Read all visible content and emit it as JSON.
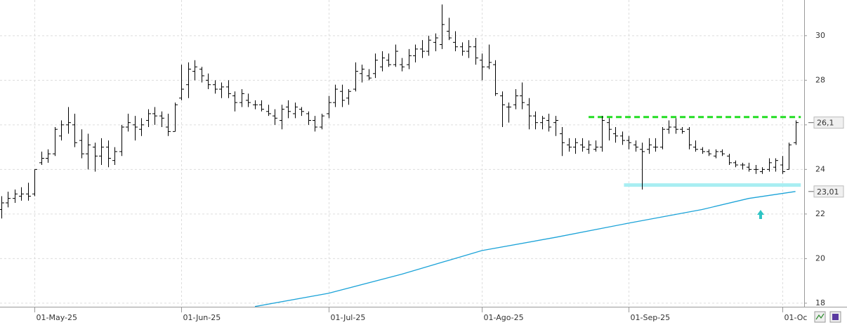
{
  "chart_data": {
    "type": "ohlc",
    "xlim": [
      -0.2,
      120.3
    ],
    "ylim": [
      17.84,
      31.6
    ],
    "yticks": [
      18,
      20,
      22,
      24,
      26,
      28,
      30
    ],
    "xticks": [
      {
        "value": 5,
        "label": "01-May-25"
      },
      {
        "value": 27,
        "label": "01-Jun-25"
      },
      {
        "value": 49,
        "label": "01-Jul-25"
      },
      {
        "value": 72,
        "label": "01-Ago-25"
      },
      {
        "value": 94,
        "label": "01-Sep-25"
      },
      {
        "value": 117,
        "label": "01-Oc"
      }
    ],
    "grid": true,
    "color": "#000000",
    "bars": [
      [
        22.2,
        22.8,
        21.8,
        22.5
      ],
      [
        22.5,
        23.0,
        22.3,
        22.7
      ],
      [
        22.7,
        23.1,
        22.5,
        22.9
      ],
      [
        22.8,
        23.2,
        22.6,
        22.9
      ],
      [
        22.9,
        23.4,
        22.6,
        22.8
      ],
      [
        22.9,
        24.0,
        22.8,
        24.0
      ],
      [
        24.3,
        24.8,
        24.2,
        24.5
      ],
      [
        24.5,
        24.9,
        24.3,
        24.7
      ],
      [
        24.7,
        25.9,
        24.6,
        25.8
      ],
      [
        25.5,
        26.2,
        25.3,
        26.0
      ],
      [
        26.0,
        26.8,
        25.6,
        26.1
      ],
      [
        26.0,
        26.5,
        25.0,
        25.2
      ],
      [
        25.3,
        25.8,
        24.5,
        24.7
      ],
      [
        24.7,
        25.6,
        24.0,
        25.1
      ],
      [
        25.0,
        25.2,
        23.9,
        24.6
      ],
      [
        24.6,
        25.4,
        24.2,
        25.0
      ],
      [
        25.0,
        25.3,
        24.1,
        24.5
      ],
      [
        24.4,
        25.0,
        24.2,
        24.8
      ],
      [
        24.8,
        26.0,
        24.6,
        25.9
      ],
      [
        25.9,
        26.5,
        25.7,
        26.1
      ],
      [
        26.0,
        26.4,
        25.3,
        25.9
      ],
      [
        25.8,
        26.3,
        25.5,
        26.0
      ],
      [
        26.2,
        26.7,
        25.9,
        26.5
      ],
      [
        26.5,
        26.8,
        26.0,
        26.4
      ],
      [
        26.4,
        26.6,
        25.9,
        26.3
      ],
      [
        25.9,
        26.5,
        25.5,
        25.7
      ],
      [
        25.7,
        27.0,
        25.7,
        26.9
      ],
      [
        27.2,
        28.7,
        27.1,
        27.6
      ],
      [
        27.8,
        28.8,
        27.2,
        28.5
      ],
      [
        28.4,
        28.9,
        28.0,
        28.6
      ],
      [
        28.5,
        28.6,
        27.9,
        28.2
      ],
      [
        28.0,
        28.3,
        27.6,
        27.8
      ],
      [
        27.8,
        28.0,
        27.4,
        27.6
      ],
      [
        27.6,
        27.9,
        27.2,
        27.7
      ],
      [
        27.7,
        28.0,
        27.2,
        27.4
      ],
      [
        27.3,
        27.5,
        26.6,
        27.0
      ],
      [
        27.0,
        27.6,
        26.8,
        27.4
      ],
      [
        27.1,
        27.4,
        26.8,
        27.0
      ],
      [
        26.9,
        27.1,
        26.7,
        26.9
      ],
      [
        26.9,
        27.1,
        26.6,
        26.7
      ],
      [
        26.6,
        26.9,
        26.4,
        26.5
      ],
      [
        26.4,
        26.7,
        26.0,
        26.3
      ],
      [
        26.2,
        26.9,
        25.8,
        26.7
      ],
      [
        26.8,
        27.1,
        26.3,
        26.6
      ],
      [
        26.5,
        27.0,
        26.3,
        26.8
      ],
      [
        26.7,
        26.8,
        26.4,
        26.6
      ],
      [
        26.5,
        26.6,
        26.0,
        26.2
      ],
      [
        26.2,
        26.4,
        25.7,
        25.9
      ],
      [
        25.9,
        26.5,
        25.8,
        26.4
      ],
      [
        26.5,
        27.3,
        26.3,
        27.0
      ],
      [
        27.0,
        27.8,
        26.8,
        27.6
      ],
      [
        27.5,
        27.8,
        26.8,
        27.1
      ],
      [
        27.2,
        27.6,
        26.9,
        27.5
      ],
      [
        27.6,
        28.8,
        27.5,
        28.4
      ],
      [
        28.3,
        28.7,
        27.9,
        28.5
      ],
      [
        28.2,
        28.5,
        28.0,
        28.1
      ],
      [
        28.3,
        29.2,
        28.1,
        28.9
      ],
      [
        28.6,
        29.3,
        28.4,
        29.0
      ],
      [
        28.9,
        29.2,
        28.6,
        28.7
      ],
      [
        28.7,
        29.6,
        28.6,
        29.3
      ],
      [
        28.7,
        29.0,
        28.4,
        28.6
      ],
      [
        28.7,
        29.4,
        28.5,
        29.1
      ],
      [
        29.1,
        29.6,
        28.8,
        29.4
      ],
      [
        29.4,
        29.8,
        29.0,
        29.3
      ],
      [
        29.3,
        30.0,
        29.1,
        29.8
      ],
      [
        29.7,
        30.1,
        29.3,
        29.9
      ],
      [
        29.6,
        31.4,
        29.4,
        30.5
      ],
      [
        30.2,
        30.8,
        29.8,
        29.9
      ],
      [
        29.7,
        30.2,
        29.3,
        29.5
      ],
      [
        29.5,
        29.7,
        29.1,
        29.3
      ],
      [
        29.3,
        29.8,
        29.0,
        29.5
      ],
      [
        29.5,
        29.9,
        28.7,
        29.0
      ],
      [
        28.9,
        29.2,
        28.0,
        28.6
      ],
      [
        28.6,
        29.6,
        28.5,
        28.8
      ],
      [
        28.7,
        28.9,
        27.3,
        27.4
      ],
      [
        27.3,
        27.5,
        25.9,
        26.9
      ],
      [
        26.8,
        27.0,
        26.1,
        26.8
      ],
      [
        26.9,
        27.6,
        26.7,
        27.3
      ],
      [
        27.3,
        27.9,
        26.7,
        27.0
      ],
      [
        26.9,
        27.2,
        25.8,
        26.4
      ],
      [
        26.4,
        26.6,
        25.8,
        26.1
      ],
      [
        26.1,
        26.4,
        25.8,
        26.3
      ],
      [
        26.2,
        26.5,
        25.7,
        25.9
      ],
      [
        26.1,
        26.4,
        25.5,
        26.2
      ],
      [
        25.6,
        25.9,
        24.6,
        25.2
      ],
      [
        25.1,
        25.4,
        24.8,
        25.0
      ],
      [
        25.0,
        25.4,
        24.7,
        25.2
      ],
      [
        25.1,
        25.4,
        24.8,
        25.0
      ],
      [
        24.9,
        25.3,
        24.7,
        25.1
      ],
      [
        24.9,
        25.3,
        24.8,
        25.0
      ],
      [
        25.0,
        26.4,
        24.8,
        26.2
      ],
      [
        26.1,
        26.3,
        25.3,
        25.8
      ],
      [
        25.6,
        25.9,
        25.2,
        25.5
      ],
      [
        25.5,
        25.7,
        25.1,
        25.3
      ],
      [
        25.3,
        25.5,
        24.9,
        25.2
      ],
      [
        25.1,
        25.3,
        24.8,
        25.0
      ],
      [
        24.9,
        25.2,
        23.1,
        24.8
      ],
      [
        24.9,
        25.4,
        24.7,
        25.1
      ],
      [
        25.0,
        25.4,
        24.8,
        25.0
      ],
      [
        25.0,
        25.9,
        24.9,
        25.8
      ],
      [
        25.8,
        26.2,
        25.6,
        25.9
      ],
      [
        25.9,
        26.3,
        25.6,
        25.8
      ],
      [
        25.8,
        25.9,
        25.6,
        25.7
      ],
      [
        25.8,
        25.9,
        24.9,
        25.1
      ],
      [
        25.0,
        25.3,
        24.8,
        24.9
      ],
      [
        24.9,
        25.0,
        24.7,
        24.8
      ],
      [
        24.8,
        24.9,
        24.6,
        24.7
      ],
      [
        24.6,
        24.9,
        24.5,
        24.8
      ],
      [
        24.8,
        24.9,
        24.6,
        24.7
      ],
      [
        24.6,
        24.7,
        24.2,
        24.3
      ],
      [
        24.3,
        24.4,
        24.1,
        24.2
      ],
      [
        24.2,
        24.3,
        24.0,
        24.2
      ],
      [
        24.1,
        24.3,
        23.9,
        24.0
      ],
      [
        24.0,
        24.2,
        23.8,
        24.0
      ],
      [
        23.9,
        24.1,
        23.8,
        24.0
      ],
      [
        24.0,
        24.5,
        23.9,
        24.3
      ],
      [
        24.1,
        24.5,
        23.9,
        24.4
      ],
      [
        24.2,
        24.6,
        23.8,
        23.9
      ],
      [
        24.0,
        25.2,
        24.0,
        25.1
      ],
      [
        25.2,
        26.2,
        25.1,
        26.1
      ]
    ],
    "moving_average": {
      "color": "#1ca3d8",
      "x": [
        38,
        49,
        60,
        72,
        83,
        94,
        105,
        112,
        119
      ],
      "values": [
        17.85,
        18.44,
        19.3,
        20.36,
        20.95,
        21.59,
        22.2,
        22.7,
        23.01
      ]
    },
    "levels": [
      {
        "value": 26.35,
        "from": 88,
        "to": 119.8,
        "color": "#22dd22",
        "style": "dashed"
      },
      {
        "value": 23.3,
        "from": 93.3,
        "to": 119.8,
        "color": "#a8eef2",
        "style": "solid"
      }
    ],
    "axis_markers": [
      {
        "value": 26.1,
        "label": "26,1",
        "color": "#333333"
      },
      {
        "value": 23.01,
        "label": "23,01",
        "color": "#a02020"
      }
    ]
  }
}
